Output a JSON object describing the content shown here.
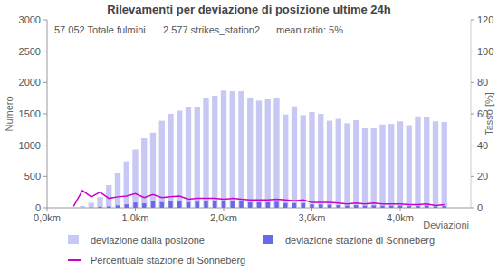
{
  "chart_data": {
    "type": "bar",
    "title": "Rilevamenti per deviazione di posizione ultime 24h",
    "annotations": [
      "57.052 Totale fulmini",
      "2.577 strikes_station2",
      "mean ratio: 5%"
    ],
    "x_label": "Deviazioni",
    "y_label": "Numero",
    "y2_label": "Tasso [%]",
    "x": [
      0.0,
      0.1,
      0.2,
      0.3,
      0.4,
      0.5,
      0.6,
      0.7,
      0.8,
      0.9,
      1.0,
      1.1,
      1.2,
      1.3,
      1.4,
      1.5,
      1.6,
      1.7,
      1.8,
      1.9,
      2.0,
      2.1,
      2.2,
      2.3,
      2.4,
      2.5,
      2.6,
      2.7,
      2.8,
      2.9,
      3.0,
      3.1,
      3.2,
      3.3,
      3.4,
      3.5,
      3.6,
      3.7,
      3.8,
      3.9,
      4.0,
      4.1,
      4.2,
      4.3,
      4.4,
      4.5
    ],
    "series": [
      {
        "name": "deviazione dalla posizone",
        "type": "bar",
        "color": "#c8c8f4",
        "values": [
          0,
          0,
          3,
          10,
          30,
          80,
          170,
          360,
          550,
          740,
          930,
          1110,
          1200,
          1390,
          1500,
          1550,
          1610,
          1610,
          1750,
          1790,
          1870,
          1860,
          1860,
          1760,
          1710,
          1730,
          1750,
          1490,
          1620,
          1480,
          1530,
          1500,
          1390,
          1420,
          1350,
          1400,
          1270,
          1270,
          1330,
          1340,
          1380,
          1320,
          1460,
          1450,
          1380,
          1370
        ]
      },
      {
        "name": "deviazione stazione di Sonneberg",
        "type": "bar",
        "color": "#6a6ae8",
        "values": [
          0,
          0,
          0,
          0,
          3,
          6,
          17,
          22,
          38,
          55,
          84,
          72,
          102,
          90,
          105,
          116,
          89,
          97,
          105,
          107,
          103,
          112,
          102,
          88,
          86,
          87,
          96,
          75,
          73,
          74,
          54,
          53,
          49,
          43,
          34,
          42,
          32,
          38,
          33,
          34,
          35,
          26,
          29,
          36,
          21,
          27
        ]
      },
      {
        "name": "Percentuale stazione di Sonneberg",
        "type": "line",
        "axis": "y2",
        "color": "#cc00cc",
        "values": [
          null,
          null,
          null,
          1,
          11,
          7,
          10,
          6,
          7,
          7.5,
          9,
          6.5,
          8.5,
          6.5,
          7,
          7.5,
          5.5,
          6,
          6,
          6,
          5.5,
          6,
          5.5,
          5,
          5,
          5,
          5.5,
          5,
          4.5,
          5,
          3.5,
          3.5,
          3.5,
          3,
          2.5,
          3,
          2.5,
          3,
          2.5,
          2.5,
          2.5,
          2,
          2,
          2.5,
          1.5,
          2
        ]
      }
    ],
    "xlim": [
      0,
      4.8
    ],
    "xticks": [
      {
        "value": 0,
        "label": "0,0km"
      },
      {
        "value": 1,
        "label": "1,0km"
      },
      {
        "value": 2,
        "label": "2,0km"
      },
      {
        "value": 3,
        "label": "3,0km"
      },
      {
        "value": 4,
        "label": "4,0km"
      }
    ],
    "ylim": [
      0,
      3000
    ],
    "yticks": [
      0,
      500,
      1000,
      1500,
      2000,
      2500,
      3000
    ],
    "y2lim": [
      0,
      120
    ],
    "y2ticks": [
      0,
      20,
      40,
      60,
      80,
      100,
      120
    ],
    "grid": false,
    "legend": "bottom"
  }
}
